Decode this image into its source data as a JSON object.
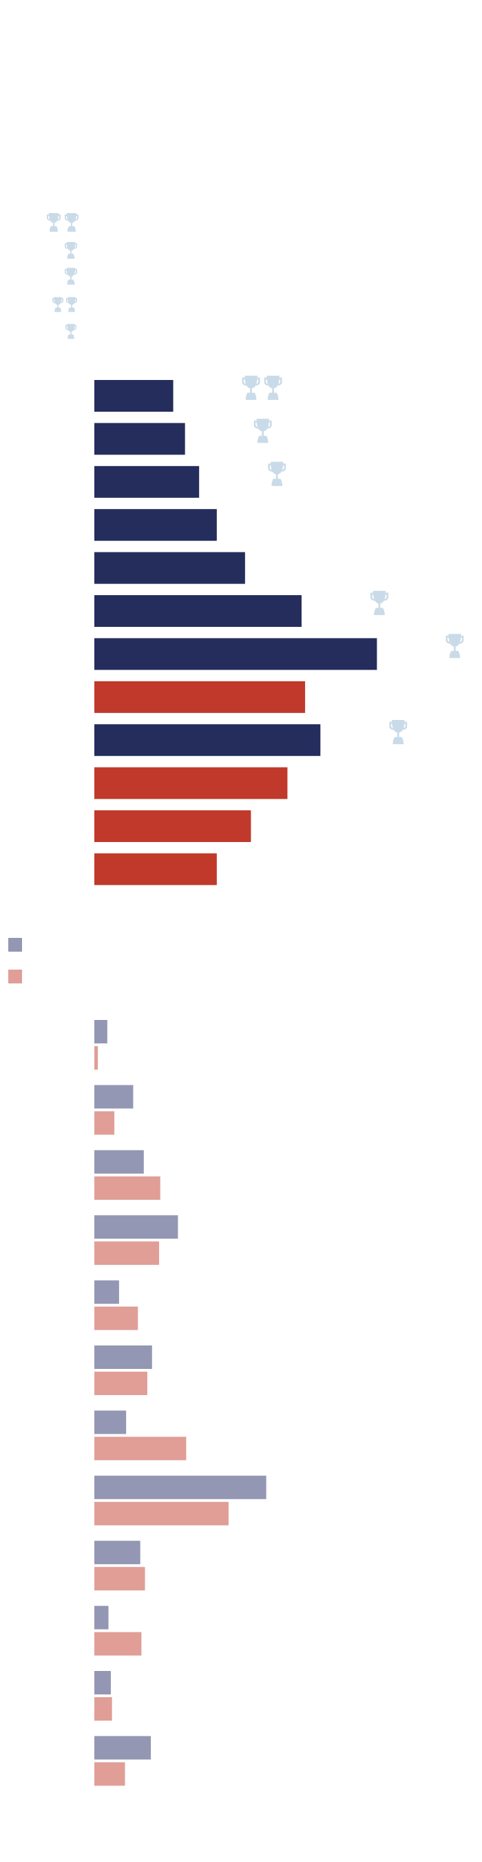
{
  "chart_data": [
    {
      "type": "bar",
      "orientation": "horizontal",
      "values": [
        67,
        77,
        89,
        104,
        128,
        176,
        240,
        179,
        192,
        164,
        133,
        104
      ],
      "colors": [
        "#252d5c",
        "#252d5c",
        "#252d5c",
        "#252d5c",
        "#252d5c",
        "#252d5c",
        "#252d5c",
        "#c0392b",
        "#252d5c",
        "#c0392b",
        "#c0392b",
        "#c0392b"
      ],
      "trophies": [
        2,
        1,
        1,
        0,
        0,
        1,
        1,
        0,
        1,
        0,
        0,
        0
      ],
      "trophy_color": "#c9dbe8"
    },
    {
      "type": "grouped-bar",
      "orientation": "horizontal",
      "series": [
        {
          "color": "#9497b3",
          "values": [
            11,
            33,
            42,
            71,
            21,
            49,
            27,
            146,
            39,
            12,
            14,
            48
          ]
        },
        {
          "color": "#e09e97",
          "values": [
            3,
            17,
            56,
            55,
            37,
            45,
            78,
            114,
            43,
            40,
            15,
            26
          ]
        }
      ]
    }
  ]
}
